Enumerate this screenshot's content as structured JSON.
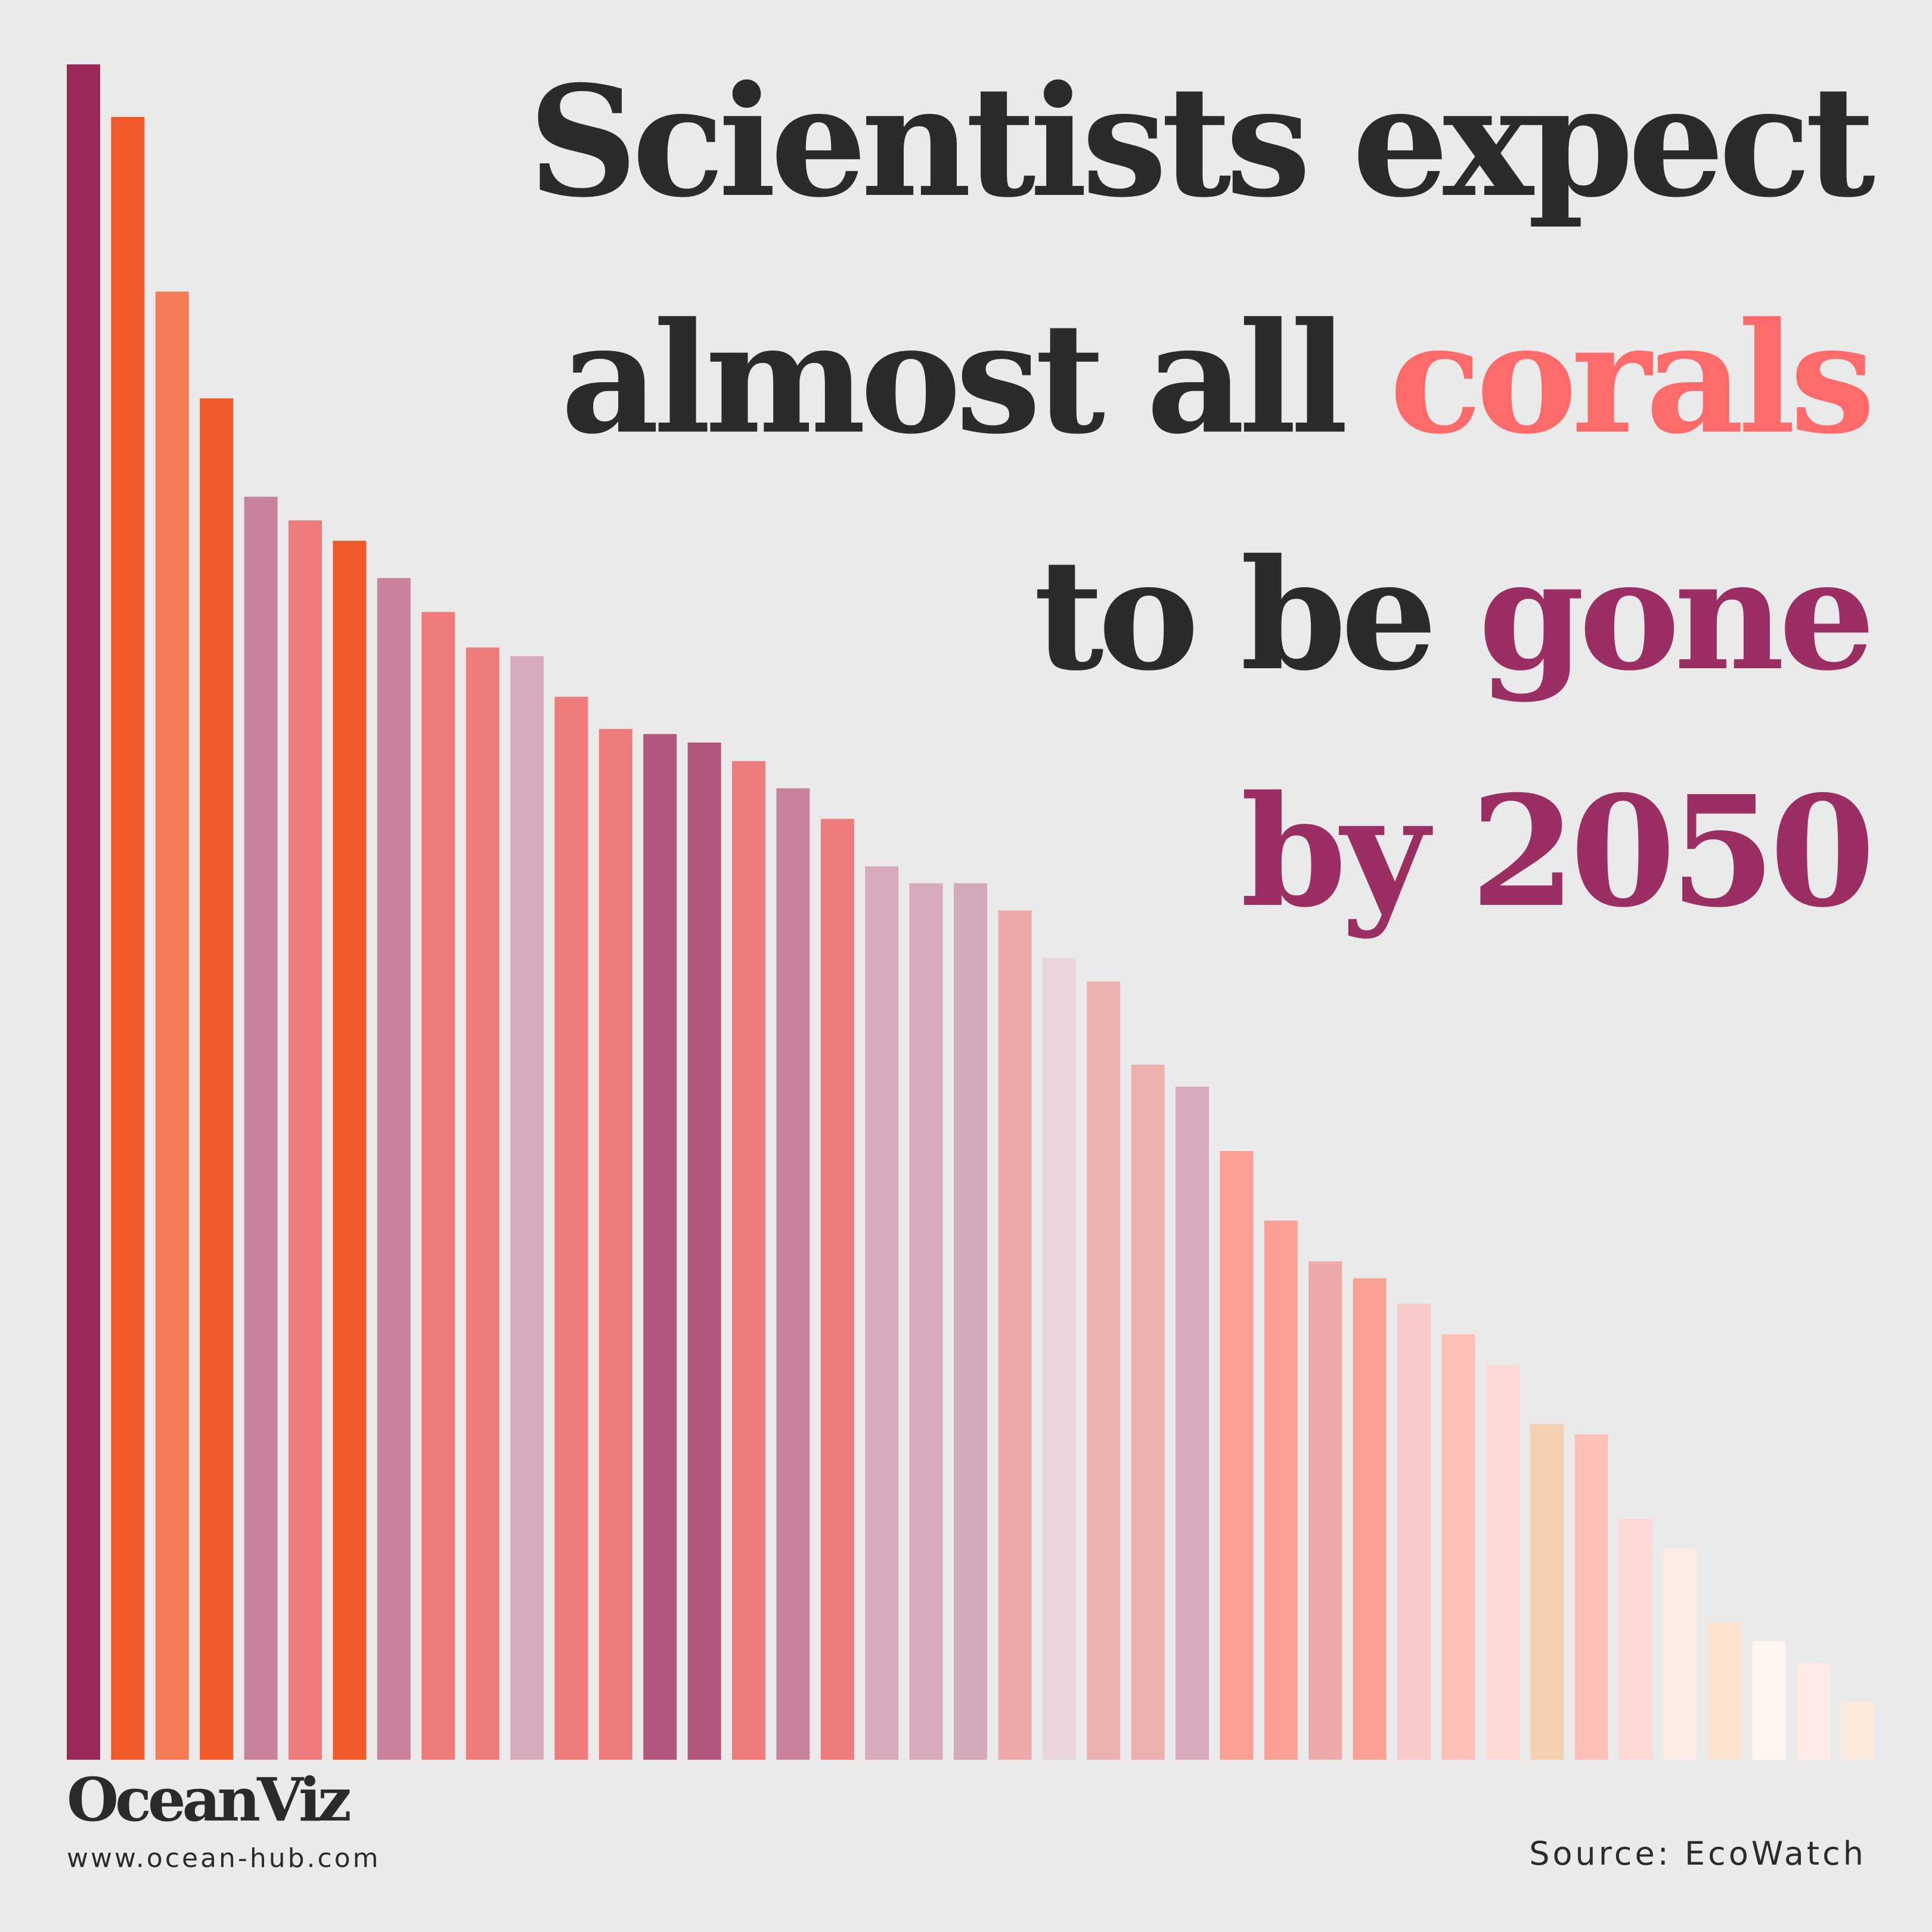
{
  "title": {
    "part1": "Scientists expect",
    "part2": "almost all ",
    "part3": "corals",
    "part4": "to be ",
    "part5": "gone",
    "part6": "by 2050"
  },
  "colors": {
    "dark": "#2b2b2b",
    "coral": "#ff6b6b",
    "plum": "#9b2f63",
    "background": "#eaeaea"
  },
  "chart_data": {
    "type": "bar",
    "title": "Scientists expect almost all corals to be gone by 2050",
    "xlabel": "",
    "ylabel": "",
    "ylim": [
      0,
      100
    ],
    "grid": false,
    "values": [
      100,
      96.9,
      86.6,
      80.3,
      74.5,
      73.1,
      71.9,
      69.7,
      67.7,
      65.6,
      65.1,
      62.7,
      60.8,
      60.5,
      60.0,
      58.9,
      57.3,
      55.5,
      52.7,
      51.7,
      51.7,
      50.1,
      47.3,
      45.9,
      41.0,
      39.7,
      35.9,
      31.8,
      29.4,
      28.4,
      26.9,
      25.1,
      23.3,
      19.8,
      19.2,
      14.2,
      12.5,
      8.1,
      7.0,
      5.7,
      3.4
    ],
    "bar_colors": [
      "#9b2a5a",
      "#f05a2a",
      "#f47c56",
      "#f05a2a",
      "#c9829e",
      "#ef7b7b",
      "#f05a2a",
      "#c9829e",
      "#ef7b7b",
      "#ef7b7b",
      "#d9aabd",
      "#ef7b7b",
      "#ef7b7b",
      "#b2567f",
      "#b2567f",
      "#ef7b7b",
      "#c9829e",
      "#ef7b7b",
      "#d9aabd",
      "#d9aabd",
      "#d4a8bb",
      "#ecaaaa",
      "#ead5dd",
      "#ecb0b0",
      "#ecb0b0",
      "#d9aabd",
      "#f9a093",
      "#f9a093",
      "#ecaaaa",
      "#f9a093",
      "#f8c9c9",
      "#fdc0b8",
      "#fdd8d4",
      "#f5d0b0",
      "#fdc0b8",
      "#fdd8d4",
      "#fdebe6",
      "#fbe3d0",
      "#fff5ee",
      "#fde9e6",
      "#fcebdc"
    ]
  },
  "footer": {
    "brand": "OceanViz",
    "url": "www.ocean-hub.com",
    "source": "Source: EcoWatch"
  }
}
